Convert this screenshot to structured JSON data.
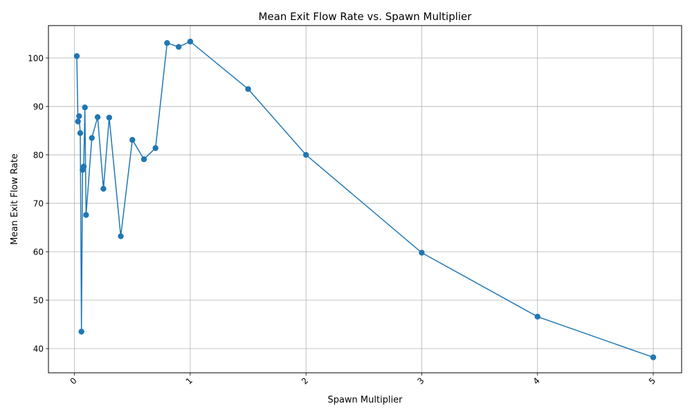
{
  "chart_data": {
    "type": "line",
    "title": "Mean Exit Flow Rate vs. Spawn Multiplier",
    "xlabel": "Spawn Multiplier",
    "ylabel": "Mean Exit Flow Rate",
    "xlim": [
      -0.225,
      5.245
    ],
    "ylim": [
      35.0,
      106.7
    ],
    "x_ticks": [
      0,
      1,
      2,
      3,
      4,
      5
    ],
    "y_ticks": [
      40,
      50,
      60,
      70,
      80,
      90,
      100
    ],
    "grid": true,
    "line_color": "#1f77b4",
    "marker": "circle",
    "series": [
      {
        "x": [
          0.02,
          0.03,
          0.04,
          0.05,
          0.06,
          0.07,
          0.08,
          0.09,
          0.1,
          0.15,
          0.2,
          0.25,
          0.3,
          0.4,
          0.5,
          0.6,
          0.7,
          0.8,
          0.9,
          1.0,
          1.5,
          2.0,
          3.0,
          4.0,
          5.0
        ],
        "y": [
          100.4,
          86.9,
          88.0,
          84.5,
          43.5,
          76.9,
          77.6,
          89.8,
          67.6,
          83.5,
          87.8,
          73.0,
          87.7,
          63.2,
          83.1,
          79.1,
          81.4,
          103.1,
          102.3,
          103.4,
          93.6,
          80.0,
          59.8,
          46.6,
          38.2
        ]
      }
    ]
  }
}
